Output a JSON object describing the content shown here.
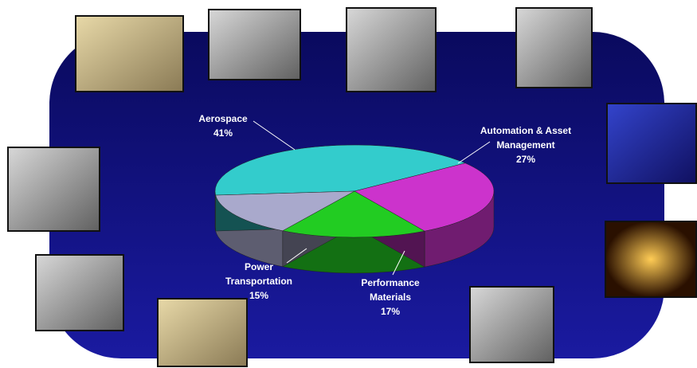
{
  "chart_data": {
    "type": "pie",
    "categories": [
      "Aerospace",
      "Automation & Asset Management",
      "Performance Materials",
      "Power Transportation"
    ],
    "values": [
      41,
      27,
      17,
      15
    ],
    "value_labels": [
      "41%",
      "27%",
      "17%",
      "15%"
    ],
    "colors": [
      "#33cccc",
      "#cc33cc",
      "#22cc22",
      "#a9a9cc"
    ]
  }
}
